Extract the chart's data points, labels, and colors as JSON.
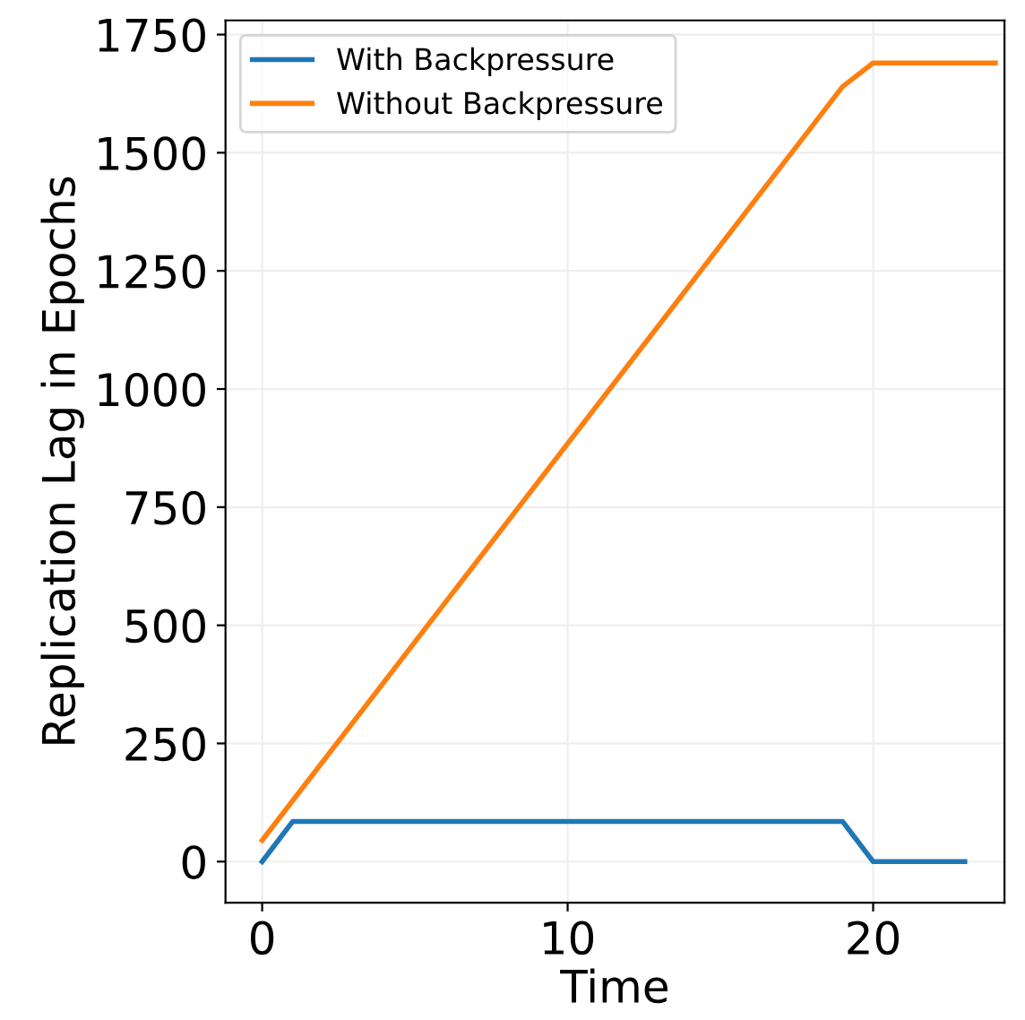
{
  "chart_data": {
    "type": "line",
    "xlabel": "Time",
    "ylabel": "Replication Lag in Epochs",
    "xlim": [
      -1.2,
      24.3
    ],
    "ylim": [
      -87,
      1780
    ],
    "xticks": [
      0,
      10,
      20
    ],
    "yticks": [
      0,
      250,
      500,
      750,
      1000,
      1250,
      1500,
      1750
    ],
    "grid": true,
    "legend": "top left",
    "marker": "none",
    "line_style": "solid",
    "series": [
      {
        "name": "With Backpressure",
        "color": "#1f77b4",
        "x": [
          0,
          1,
          19,
          20,
          23
        ],
        "values": [
          0,
          85,
          85,
          0,
          0
        ]
      },
      {
        "name": "Without Backpressure",
        "color": "#ff7f0e",
        "x": [
          0,
          19,
          20,
          24
        ],
        "values": [
          45,
          1640,
          1690,
          1690
        ]
      }
    ]
  }
}
